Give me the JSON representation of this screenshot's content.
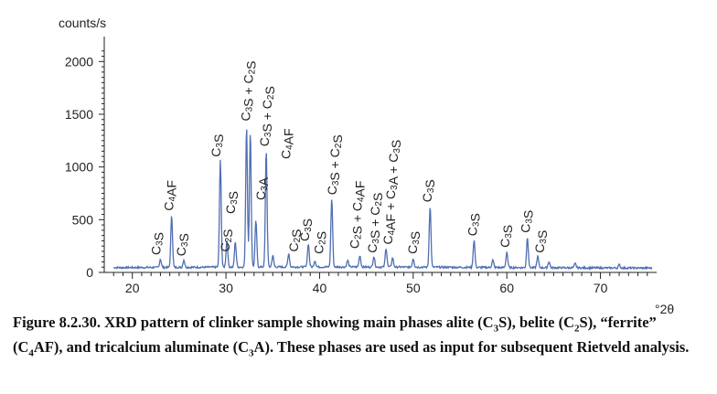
{
  "chart_data": {
    "type": "line",
    "ylabel": "counts/s",
    "xlabel": "°2θ",
    "xlim": [
      17,
      76
    ],
    "ylim": [
      0,
      2150
    ],
    "x_ticks": [
      20,
      30,
      40,
      50,
      60,
      70
    ],
    "y_ticks": [
      0,
      500,
      1000,
      1500,
      2000
    ],
    "grid": false,
    "legend": "none",
    "line_color": "#4f6fb3",
    "baseline": 40,
    "peaks": [
      {
        "x": 23.0,
        "y": 120
      },
      {
        "x": 24.2,
        "y": 540
      },
      {
        "x": 25.5,
        "y": 110
      },
      {
        "x": 29.4,
        "y": 1050
      },
      {
        "x": 30.1,
        "y": 300
      },
      {
        "x": 31.0,
        "y": 280
      },
      {
        "x": 32.2,
        "y": 1380
      },
      {
        "x": 32.6,
        "y": 1330
      },
      {
        "x": 33.2,
        "y": 480
      },
      {
        "x": 34.3,
        "y": 1150
      },
      {
        "x": 35.0,
        "y": 150
      },
      {
        "x": 36.7,
        "y": 170
      },
      {
        "x": 38.8,
        "y": 260
      },
      {
        "x": 39.5,
        "y": 100
      },
      {
        "x": 41.3,
        "y": 690
      },
      {
        "x": 43.0,
        "y": 100
      },
      {
        "x": 44.3,
        "y": 150
      },
      {
        "x": 45.8,
        "y": 140
      },
      {
        "x": 47.1,
        "y": 220
      },
      {
        "x": 47.8,
        "y": 130
      },
      {
        "x": 50.0,
        "y": 120
      },
      {
        "x": 51.8,
        "y": 620
      },
      {
        "x": 56.5,
        "y": 300
      },
      {
        "x": 58.5,
        "y": 110
      },
      {
        "x": 60.0,
        "y": 190
      },
      {
        "x": 62.2,
        "y": 330
      },
      {
        "x": 63.3,
        "y": 150
      },
      {
        "x": 64.5,
        "y": 100
      },
      {
        "x": 67.3,
        "y": 80
      },
      {
        "x": 72.0,
        "y": 70
      }
    ],
    "annotations": [
      {
        "label": "C3S",
        "x": 22.6,
        "y": 130
      },
      {
        "label": "C4AF",
        "x": 24.0,
        "y": 550
      },
      {
        "label": "C3S",
        "x": 25.3,
        "y": 120
      },
      {
        "label": "C3S",
        "x": 29.0,
        "y": 1060
      },
      {
        "label": "C3S",
        "x": 30.6,
        "y": 520
      },
      {
        "label": "C2S",
        "x": 30.0,
        "y": 160
      },
      {
        "label": "C3S + C2S",
        "x": 32.2,
        "y": 1400
      },
      {
        "label": "C3S + C2S",
        "x": 34.2,
        "y": 1160
      },
      {
        "label": "C4AF",
        "x": 36.5,
        "y": 1040
      },
      {
        "label": "C3A",
        "x": 33.8,
        "y": 650
      },
      {
        "label": "C2S",
        "x": 37.3,
        "y": 160
      },
      {
        "label": "C3S",
        "x": 38.5,
        "y": 260
      },
      {
        "label": "C2S",
        "x": 40.0,
        "y": 140
      },
      {
        "label": "C3S + C2S",
        "x": 41.4,
        "y": 700
      },
      {
        "label": "C2S + C4AF",
        "x": 43.8,
        "y": 190
      },
      {
        "label": "C3S + C2S",
        "x": 45.7,
        "y": 150
      },
      {
        "label": "C4AF + C3A + C3S",
        "x": 47.4,
        "y": 230
      },
      {
        "label": "C3S",
        "x": 50.0,
        "y": 140
      },
      {
        "label": "C3S",
        "x": 51.6,
        "y": 630
      },
      {
        "label": "C3S",
        "x": 56.4,
        "y": 310
      },
      {
        "label": "C3S",
        "x": 59.9,
        "y": 200
      },
      {
        "label": "C3S",
        "x": 62.1,
        "y": 340
      },
      {
        "label": "C3S",
        "x": 63.6,
        "y": 150
      }
    ]
  },
  "caption": {
    "lead": "Figure 8.2.30. XRD pattern of clinker sample showing main phases alite (C",
    "s1": "3",
    "t1": "S), belite (C",
    "s2": "2",
    "t2": "S), “ferrite” (C",
    "s3": "4",
    "t3": "AF), and tricalcium aluminate (C",
    "s4": "3",
    "t4": "A). These phases are used as input for subsequent Rietveld analysis."
  }
}
